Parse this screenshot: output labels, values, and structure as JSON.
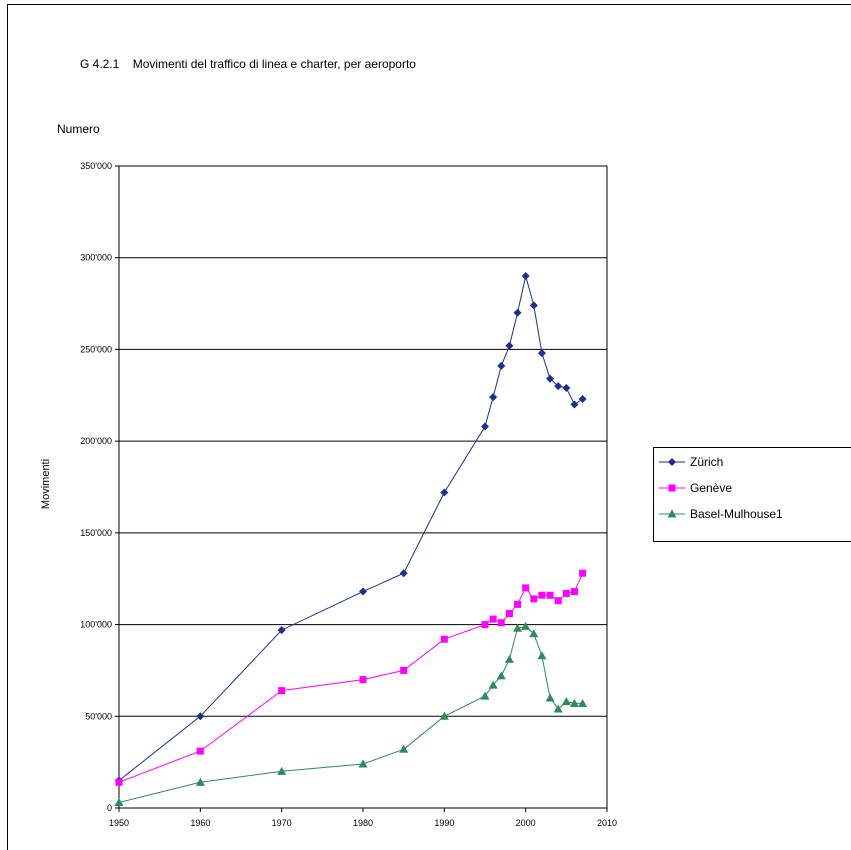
{
  "chart_data": {
    "type": "line",
    "code": "G 4.2.1",
    "title": "Movimenti del traffico di linea e charter, per aeroporto",
    "ylabel_top": "Numero",
    "ylabel": "Movimenti",
    "xlim": [
      1950,
      2010
    ],
    "ylim": [
      0,
      350000
    ],
    "x_ticks": [
      "1950",
      "1960",
      "1970",
      "1980",
      "1990",
      "2000",
      "2010"
    ],
    "y_ticks": [
      "0",
      "50'000",
      "100'000",
      "150'000",
      "200'000",
      "250'000",
      "300'000",
      "350'000"
    ],
    "grid": "horizontal",
    "legend_position": "right",
    "series": [
      {
        "name": "Zürich",
        "color": "#1f2f8f",
        "marker": "diamond",
        "points": [
          [
            1950,
            15000
          ],
          [
            1960,
            50000
          ],
          [
            1970,
            97000
          ],
          [
            1980,
            118000
          ],
          [
            1985,
            128000
          ],
          [
            1990,
            172000
          ],
          [
            1995,
            208000
          ],
          [
            1996,
            224000
          ],
          [
            1997,
            241000
          ],
          [
            1998,
            252000
          ],
          [
            1999,
            270000
          ],
          [
            2000,
            290000
          ],
          [
            2001,
            274000
          ],
          [
            2002,
            248000
          ],
          [
            2003,
            234000
          ],
          [
            2004,
            230000
          ],
          [
            2005,
            229000
          ],
          [
            2006,
            220000
          ],
          [
            2007,
            223000
          ]
        ]
      },
      {
        "name": "Genève",
        "color": "#ff00ff",
        "marker": "square",
        "points": [
          [
            1950,
            14000
          ],
          [
            1960,
            31000
          ],
          [
            1970,
            64000
          ],
          [
            1980,
            70000
          ],
          [
            1985,
            75000
          ],
          [
            1990,
            92000
          ],
          [
            1995,
            100000
          ],
          [
            1996,
            103000
          ],
          [
            1997,
            101000
          ],
          [
            1998,
            106000
          ],
          [
            1999,
            111000
          ],
          [
            2000,
            120000
          ],
          [
            2001,
            114000
          ],
          [
            2002,
            116000
          ],
          [
            2003,
            116000
          ],
          [
            2004,
            113000
          ],
          [
            2005,
            117000
          ],
          [
            2006,
            118000
          ],
          [
            2007,
            128000
          ]
        ]
      },
      {
        "name": "Basel-Mulhouse1",
        "color": "#2e8b57",
        "marker": "triangle",
        "points": [
          [
            1950,
            3000
          ],
          [
            1960,
            14000
          ],
          [
            1970,
            20000
          ],
          [
            1980,
            24000
          ],
          [
            1985,
            32000
          ],
          [
            1990,
            50000
          ],
          [
            1995,
            61000
          ],
          [
            1996,
            67000
          ],
          [
            1997,
            72000
          ],
          [
            1998,
            81000
          ],
          [
            1999,
            98000
          ],
          [
            2000,
            99000
          ],
          [
            2001,
            95000
          ],
          [
            2002,
            83000
          ],
          [
            2003,
            60000
          ],
          [
            2004,
            54000
          ],
          [
            2005,
            58000
          ],
          [
            2006,
            57000
          ],
          [
            2007,
            57000
          ]
        ]
      }
    ]
  }
}
